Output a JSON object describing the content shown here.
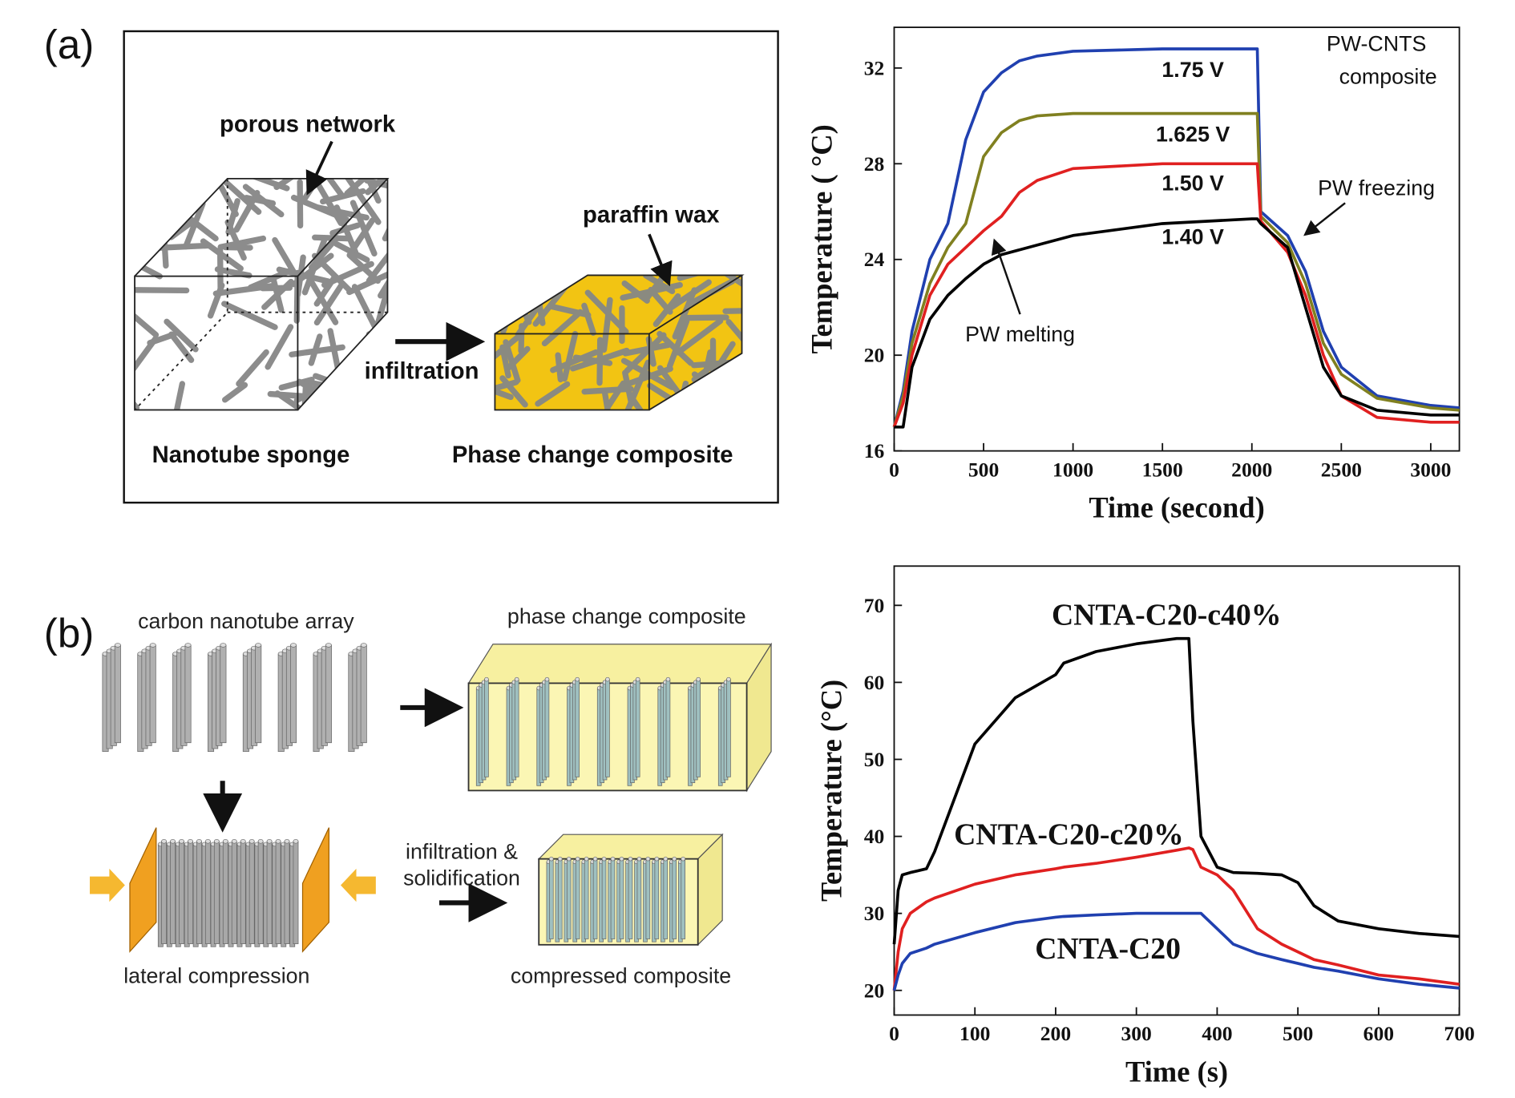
{
  "panels": {
    "a": {
      "label": "(a)",
      "porous_network": "porous network",
      "paraffin_wax": "paraffin wax",
      "infiltration": "infiltration",
      "nanotube_sponge": "Nanotube sponge",
      "phase_change_composite": "Phase change composite"
    },
    "b": {
      "label": "(b)",
      "carbon_nanotube_array": "carbon nanotube array",
      "phase_change_composite": "phase change composite",
      "lateral_compression": "lateral compression",
      "infiltration_line1": "infiltration &",
      "infiltration_line2": "solidification",
      "compressed_composite": "compressed composite"
    }
  },
  "chart_data": [
    {
      "type": "line",
      "xlabel": "Time (second)",
      "ylabel": "Temperature ( °C)",
      "x": [
        0,
        50,
        100,
        200,
        300,
        400,
        500,
        600,
        700,
        800,
        1000,
        1500,
        2000,
        2030,
        2050,
        2200,
        2300,
        2400,
        2500,
        2700,
        3000,
        3160
      ],
      "xlim": [
        0,
        3160
      ],
      "ylim": [
        16,
        33.7
      ],
      "xticks": [
        0,
        500,
        1000,
        1500,
        2000,
        2500,
        3000
      ],
      "yticks": [
        16,
        20,
        24,
        28,
        32
      ],
      "series": [
        {
          "name": "1.75 V",
          "color": "#2040b0",
          "values": [
            17,
            18.5,
            21,
            24,
            25.5,
            29,
            31,
            31.8,
            32.3,
            32.5,
            32.7,
            32.8,
            32.8,
            32.8,
            26,
            25,
            23.5,
            21,
            19.5,
            18.3,
            17.9,
            17.8
          ]
        },
        {
          "name": "1.625 V",
          "color": "#808020",
          "values": [
            17,
            18.3,
            20.5,
            23,
            24.5,
            25.5,
            28.3,
            29.3,
            29.8,
            30,
            30.1,
            30.1,
            30.1,
            30.1,
            25.8,
            24.7,
            23,
            20.5,
            19.2,
            18.2,
            17.8,
            17.7
          ]
        },
        {
          "name": "1.50 V",
          "color": "#e02020",
          "values": [
            17,
            18,
            20,
            22.5,
            23.8,
            24.5,
            25.2,
            25.8,
            26.8,
            27.3,
            27.8,
            28,
            28,
            28,
            25.6,
            24.3,
            22.5,
            20,
            18.3,
            17.4,
            17.2,
            17.2
          ]
        },
        {
          "name": "1.40 V",
          "color": "#000000",
          "values": [
            17,
            17,
            19.5,
            21.5,
            22.5,
            23.2,
            23.8,
            24.2,
            24.4,
            24.6,
            25,
            25.5,
            25.7,
            25.7,
            25.5,
            24.5,
            22,
            19.5,
            18.3,
            17.7,
            17.5,
            17.5
          ]
        }
      ],
      "annotations": [
        "PW-CNTS",
        "composite",
        "PW freezing",
        "PW melting"
      ]
    },
    {
      "type": "line",
      "xlabel": "Time (s)",
      "ylabel": "Temperature (°C)",
      "x": [
        0,
        5,
        10,
        20,
        40,
        50,
        100,
        150,
        200,
        210,
        250,
        300,
        350,
        365,
        370,
        380,
        400,
        420,
        450,
        480,
        500,
        520,
        550,
        600,
        650,
        700
      ],
      "xlim": [
        0,
        700
      ],
      "ylim": [
        16.8,
        75.1
      ],
      "xticks": [
        0,
        100,
        200,
        300,
        400,
        500,
        600,
        700
      ],
      "yticks": [
        20,
        30,
        40,
        50,
        60,
        70
      ],
      "series": [
        {
          "name": "CNTA-C20-c40%",
          "color": "#000000",
          "values": [
            26,
            33,
            35,
            35.3,
            35.8,
            38,
            52,
            58,
            61,
            62.5,
            64,
            65,
            65.7,
            65.7,
            55,
            40,
            36,
            35.3,
            35.2,
            35,
            34,
            31,
            29,
            28,
            27.4,
            27
          ]
        },
        {
          "name": "CNTA-C20-c20%",
          "color": "#e02020",
          "values": [
            20,
            25,
            28,
            30,
            31.5,
            32,
            33.8,
            35,
            35.8,
            36,
            36.5,
            37.3,
            38.2,
            38.5,
            38.3,
            36,
            35,
            33,
            28,
            26,
            25,
            24,
            23.3,
            22,
            21.5,
            20.8
          ]
        },
        {
          "name": "CNTA-C20",
          "color": "#2040b0",
          "values": [
            20,
            22,
            23.5,
            24.8,
            25.5,
            26,
            27.5,
            28.8,
            29.5,
            29.6,
            29.8,
            30,
            30,
            30,
            30,
            30,
            28,
            26,
            24.8,
            24,
            23.5,
            23,
            22.5,
            21.5,
            20.8,
            20.3
          ]
        }
      ]
    }
  ]
}
